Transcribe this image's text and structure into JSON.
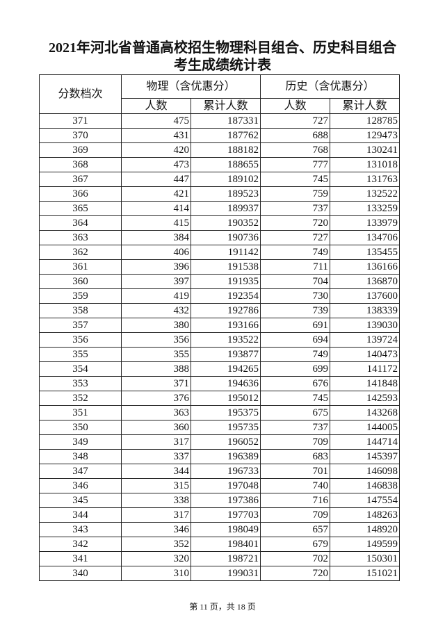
{
  "title": {
    "line1": "2021年河北省普通高校招生物理科目组合、历史科目组合",
    "line2": "考生成绩统计表"
  },
  "table": {
    "headers": {
      "score": "分数档次",
      "physics": "物理（含优惠分）",
      "history": "历史（含优惠分）",
      "count": "人数",
      "cumulative": "累计人数"
    },
    "rows": [
      [
        "371",
        "475",
        "187331",
        "727",
        "128785"
      ],
      [
        "370",
        "431",
        "187762",
        "688",
        "129473"
      ],
      [
        "369",
        "420",
        "188182",
        "768",
        "130241"
      ],
      [
        "368",
        "473",
        "188655",
        "777",
        "131018"
      ],
      [
        "367",
        "447",
        "189102",
        "745",
        "131763"
      ],
      [
        "366",
        "421",
        "189523",
        "759",
        "132522"
      ],
      [
        "365",
        "414",
        "189937",
        "737",
        "133259"
      ],
      [
        "364",
        "415",
        "190352",
        "720",
        "133979"
      ],
      [
        "363",
        "384",
        "190736",
        "727",
        "134706"
      ],
      [
        "362",
        "406",
        "191142",
        "749",
        "135455"
      ],
      [
        "361",
        "396",
        "191538",
        "711",
        "136166"
      ],
      [
        "360",
        "397",
        "191935",
        "704",
        "136870"
      ],
      [
        "359",
        "419",
        "192354",
        "730",
        "137600"
      ],
      [
        "358",
        "432",
        "192786",
        "739",
        "138339"
      ],
      [
        "357",
        "380",
        "193166",
        "691",
        "139030"
      ],
      [
        "356",
        "356",
        "193522",
        "694",
        "139724"
      ],
      [
        "355",
        "355",
        "193877",
        "749",
        "140473"
      ],
      [
        "354",
        "388",
        "194265",
        "699",
        "141172"
      ],
      [
        "353",
        "371",
        "194636",
        "676",
        "141848"
      ],
      [
        "352",
        "376",
        "195012",
        "745",
        "142593"
      ],
      [
        "351",
        "363",
        "195375",
        "675",
        "143268"
      ],
      [
        "350",
        "360",
        "195735",
        "737",
        "144005"
      ],
      [
        "349",
        "317",
        "196052",
        "709",
        "144714"
      ],
      [
        "348",
        "337",
        "196389",
        "683",
        "145397"
      ],
      [
        "347",
        "344",
        "196733",
        "701",
        "146098"
      ],
      [
        "346",
        "315",
        "197048",
        "740",
        "146838"
      ],
      [
        "345",
        "338",
        "197386",
        "716",
        "147554"
      ],
      [
        "344",
        "317",
        "197703",
        "709",
        "148263"
      ],
      [
        "343",
        "346",
        "198049",
        "657",
        "148920"
      ],
      [
        "342",
        "352",
        "198401",
        "679",
        "149599"
      ],
      [
        "341",
        "320",
        "198721",
        "702",
        "150301"
      ],
      [
        "340",
        "310",
        "199031",
        "720",
        "151021"
      ]
    ]
  },
  "footer": "第 11 页，共 18 页"
}
